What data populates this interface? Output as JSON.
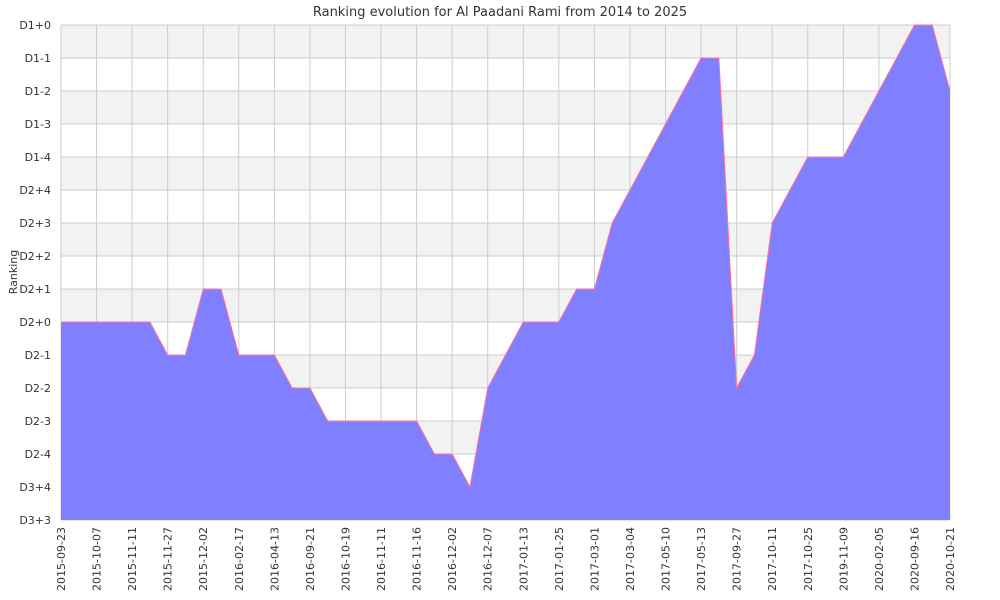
{
  "chart_data": {
    "type": "area",
    "title": "Ranking evolution for Al Paadani Rami from 2014 to 2025",
    "xlabel": "",
    "ylabel": "Ranking",
    "y_ticks": [
      "D3+3",
      "D3+4",
      "D2-4",
      "D2-3",
      "D2-2",
      "D2-1",
      "D2+0",
      "D2+1",
      "D2+2",
      "D2+3",
      "D2+4",
      "D1-4",
      "D1-3",
      "D1-2",
      "D1-1",
      "D1+0"
    ],
    "ylim": [
      0,
      15
    ],
    "x_tick_labels": [
      "2015-09-23",
      "2015-10-07",
      "2015-11-11",
      "2015-11-27",
      "2015-12-02",
      "2016-02-17",
      "2016-04-13",
      "2016-09-21",
      "2016-10-19",
      "2016-11-11",
      "2016-11-16",
      "2016-12-02",
      "2016-12-07",
      "2017-01-13",
      "2017-01-25",
      "2017-03-01",
      "2017-03-04",
      "2017-05-10",
      "2017-05-13",
      "2017-09-27",
      "2017-10-11",
      "2017-10-25",
      "2019-11-09",
      "2020-02-05",
      "2020-09-16",
      "2020-10-21"
    ],
    "x_range": [
      0,
      50
    ],
    "series": [
      {
        "x": [
          0,
          5,
          6,
          7,
          8,
          9,
          10,
          11,
          12,
          13,
          14,
          15,
          16,
          17,
          18,
          19,
          20,
          21,
          22,
          23,
          24,
          25,
          26,
          27,
          28,
          29,
          30,
          31,
          32,
          33,
          34,
          35,
          36,
          37,
          38,
          39,
          40,
          41,
          42,
          43,
          44,
          45,
          46,
          47,
          48,
          49,
          50
        ],
        "values": [
          6,
          6,
          5,
          5,
          7,
          7,
          5,
          5,
          5,
          4,
          4,
          3,
          3,
          3,
          3,
          3,
          3,
          2,
          2,
          1,
          4,
          5,
          6,
          6,
          6,
          7,
          7,
          9,
          10,
          11,
          12,
          13,
          14,
          14,
          4,
          5,
          9,
          10,
          11,
          11,
          11,
          12,
          13,
          14,
          15,
          15,
          13
        ],
        "color": "#8080ff",
        "line_color": "#ff6fa0"
      }
    ],
    "grid": true,
    "band_color": "#f2f2f2",
    "grid_color": "#cccccc"
  }
}
